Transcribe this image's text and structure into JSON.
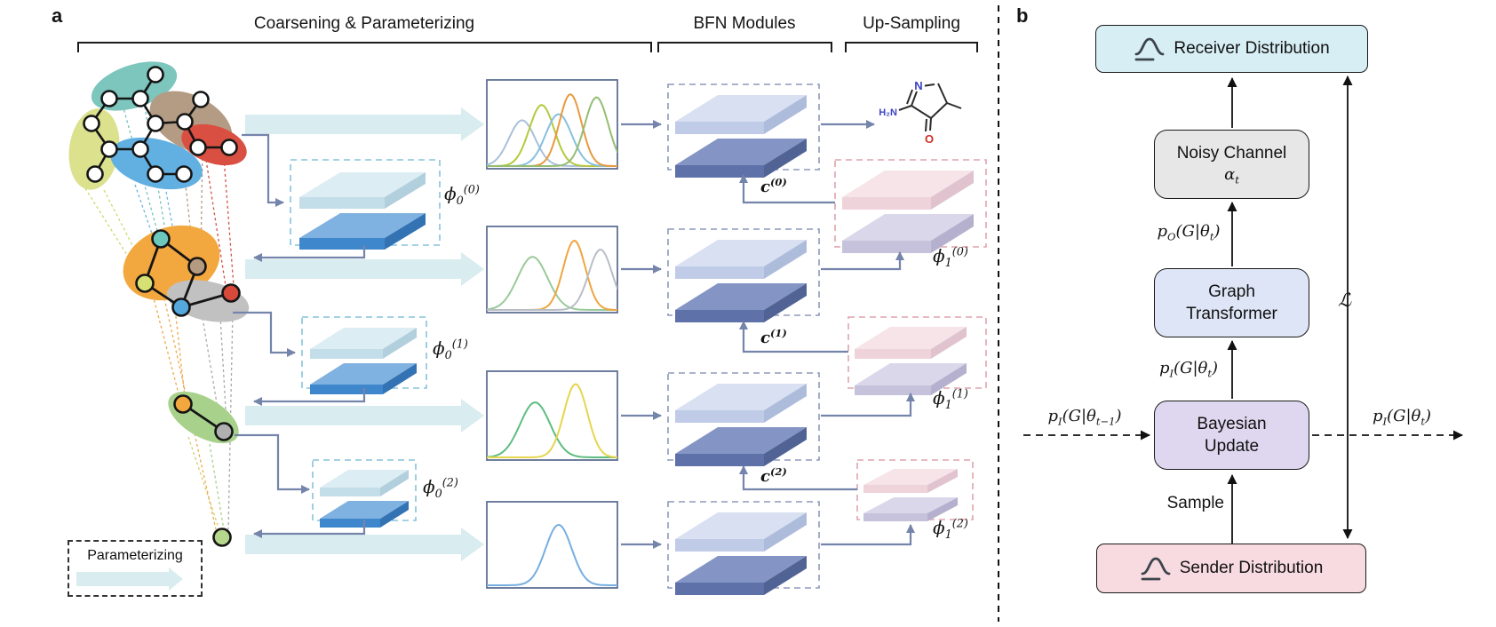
{
  "figure": {
    "panel_a_label": "a",
    "panel_b_label": "b"
  },
  "panel_a": {
    "section_titles": [
      "Coarsening & Parameterizing",
      "BFN Modules",
      "Up-Sampling"
    ],
    "legend_label": "Parameterizing",
    "phi0_labels": [
      "ϕ<sub>0</sub><sup>(0)</sup>",
      "ϕ<sub>0</sub><sup>(1)</sup>",
      "ϕ<sub>0</sub><sup>(2)</sup>"
    ],
    "phi1_labels": [
      "ϕ<sub>1</sub><sup>(0)</sup>",
      "ϕ<sub>1</sub><sup>(1)</sup>",
      "ϕ<sub>1</sub><sup>(2)</sup>"
    ],
    "context_labels": [
      "c<sup>(0)</sup>",
      "c<sup>(1)</sup>",
      "c<sup>(2)</sup>"
    ]
  },
  "panel_b": {
    "receiver_label": "Receiver Distribution",
    "noisy_channel": {
      "line1": "Noisy Channel",
      "line2": "α<sub>t</sub>"
    },
    "graph_transformer": {
      "line1": "Graph",
      "line2": "Transformer"
    },
    "bayesian_update": {
      "line1": "Bayesian",
      "line2": "Update"
    },
    "sender_label": "Sender Distribution",
    "p_output": "p<sub>O</sub>(G|θ<sub>t</sub>)",
    "p_input": "p<sub>I</sub>(G|θ<sub>t</sub>)",
    "p_input_prev": "p<sub>I</sub>(G|θ<sub>t−1</sub>)",
    "p_input_next": "p<sub>I</sub>(G|θ<sub>t</sub>)",
    "sample_label": "Sample",
    "loss_label": "ℒ"
  },
  "colors": {
    "parameterizing_arrow": "#d9ecef",
    "connector": "#7484ab",
    "phi0_module_border": "#85c3da",
    "bfn_module_border": "#8d9abc",
    "upsample_module_border": "#dfa3ad",
    "plot_frame": "#5f7094",
    "receiver_fill": "#d7eef5",
    "noisy_fill": "#e7e7e7",
    "transformer_fill": "#dee5f6",
    "bayesian_fill": "#ded7ef",
    "sender_fill": "#f8dbe0",
    "phi0_slab_blue": "#3f87cd",
    "bfn_slab_blue": "#5f71a9",
    "upsample_slab_pink": "#f6e4e9",
    "node_teal": "#6cc7bd",
    "node_brown": "#b49a80",
    "node_yellowgreen": "#d7e173",
    "node_blue": "#55a8dd",
    "node_red": "#d6493b",
    "node_orange": "#f3a83f",
    "node_gray": "#b0b0b0",
    "node_green": "#b5d88c"
  },
  "chart_data": [
    {
      "type": "line",
      "name": "level-0-parameter-densities",
      "x_range": [
        0,
        1
      ],
      "y_range": [
        0,
        1
      ],
      "grid": false,
      "curves": [
        {
          "color": "#a9c0da",
          "mean": 0.27,
          "sigma": 0.1,
          "amplitude": 0.6
        },
        {
          "color": "#b5c93d",
          "mean": 0.42,
          "sigma": 0.095,
          "amplitude": 0.8
        },
        {
          "color": "#86c0dd",
          "mean": 0.55,
          "sigma": 0.1,
          "amplitude": 0.68
        },
        {
          "color": "#e9993f",
          "mean": 0.64,
          "sigma": 0.085,
          "amplitude": 0.94
        },
        {
          "color": "#94bd72",
          "mean": 0.84,
          "sigma": 0.09,
          "amplitude": 0.9
        }
      ]
    },
    {
      "type": "line",
      "name": "level-1-parameter-densities",
      "x_range": [
        0,
        1
      ],
      "y_range": [
        0,
        1
      ],
      "grid": false,
      "curves": [
        {
          "color": "#9aca9a",
          "mean": 0.35,
          "sigma": 0.115,
          "amplitude": 0.72
        },
        {
          "color": "#eda63e",
          "mean": 0.67,
          "sigma": 0.085,
          "amplitude": 0.94
        },
        {
          "color": "#b9bdc5",
          "mean": 0.87,
          "sigma": 0.09,
          "amplitude": 0.82
        }
      ]
    },
    {
      "type": "line",
      "name": "level-2-parameter-densities",
      "x_range": [
        0,
        1
      ],
      "y_range": [
        0,
        1
      ],
      "grid": false,
      "curves": [
        {
          "color": "#5dbd80",
          "mean": 0.37,
          "sigma": 0.115,
          "amplitude": 0.72
        },
        {
          "color": "#e6d54e",
          "mean": 0.68,
          "sigma": 0.09,
          "amplitude": 0.96
        }
      ]
    },
    {
      "type": "line",
      "name": "level-3-parameter-density",
      "x_range": [
        0,
        1
      ],
      "y_range": [
        0,
        1
      ],
      "grid": false,
      "curves": [
        {
          "color": "#76aee0",
          "mean": 0.55,
          "sigma": 0.1,
          "amplitude": 0.82
        }
      ]
    }
  ]
}
